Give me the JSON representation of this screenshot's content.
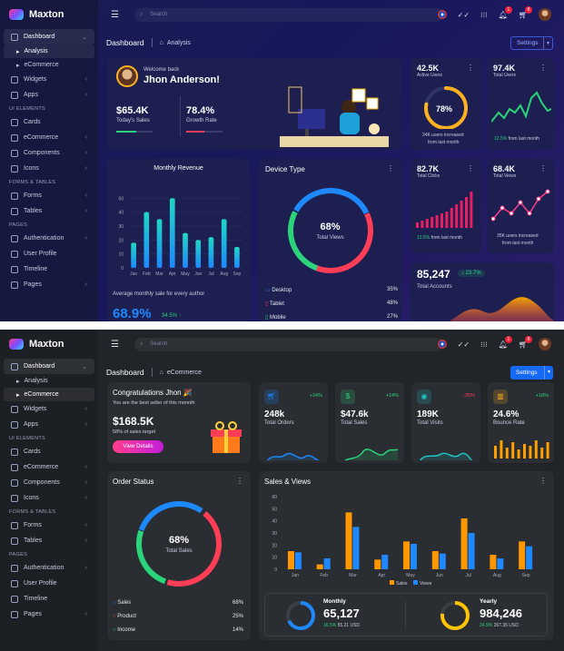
{
  "brand": "Maxton",
  "search_placeholder": "Search",
  "badges": {
    "notifications": "1",
    "cart": "8"
  },
  "sidebar": {
    "dashboard": "Dashboard",
    "analysis": "Analysis",
    "ecommerce_sub": "eCommerce",
    "widgets": "Widgets",
    "apps": "Apps",
    "cap_ui": "UI ELEMENTS",
    "cards": "Cards",
    "ecommerce": "eCommerce",
    "components": "Components",
    "icons": "Icons",
    "cap_forms": "FORMS & TABLES",
    "forms": "Forms",
    "tables": "Tables",
    "cap_pages": "PAGES",
    "authentication": "Authentication",
    "user_profile": "User Profile",
    "timeline": "Timeline",
    "pages": "Pages"
  },
  "analysis": {
    "breadcrumb_title": "Dashboard",
    "breadcrumb_sub": "Analysis",
    "settings": "Settings",
    "welcome": {
      "greeting": "Welcome back",
      "name": "Jhon Anderson!",
      "sales_value": "$65.4K",
      "sales_label": "Today's Sales",
      "growth_value": "78.4%",
      "growth_label": "Growth Rate",
      "sales_progress": 0.55,
      "growth_progress": 0.5
    },
    "active_users": {
      "value": "42.5K",
      "label": "Active Users",
      "percent": "78%",
      "percent_value": 78,
      "note1": "24K users increased",
      "note2": "from last month"
    },
    "total_users": {
      "value": "97.4K",
      "label": "Total Users",
      "change": "12.5%",
      "note": "from last month"
    },
    "monthly_revenue": {
      "title": "Monthly Revenue",
      "caption": "Average monthly sale for every author",
      "value": "68.9%",
      "change": "34.5% ↑"
    },
    "device_type": {
      "title": "Device Type",
      "percent": "68%",
      "label": "Total Views",
      "items": [
        {
          "name": "Desktop",
          "value": "35%",
          "color": "#1e88ff"
        },
        {
          "name": "Tablet",
          "value": "48%",
          "color": "#ff3d57"
        },
        {
          "name": "Mobile",
          "value": "27%",
          "color": "#2bd47a"
        }
      ]
    },
    "total_clicks": {
      "value": "82.7K",
      "label": "Total Clicks",
      "change": "12.5%",
      "note": "from last month"
    },
    "total_views": {
      "value": "68.4K",
      "label": "Total Views",
      "note1": "35K users increased",
      "note2": "from last month"
    },
    "total_accounts": {
      "value": "85,247",
      "label": "Total Accounts",
      "change": "↓ 23.7%"
    }
  },
  "ecommerce": {
    "breadcrumb_title": "Dashboard",
    "breadcrumb_sub": "eCommerce",
    "settings": "Settings",
    "congrats": {
      "title": "Congratulations Jhon 🎉",
      "subtitle": "You are the best seller of this monnth",
      "value": "$168.5K",
      "target": "58% of sales target",
      "button": "View Details"
    },
    "kpis": [
      {
        "icon": "cart-icon",
        "change": "+24%",
        "value": "248k",
        "label": "Total Orders",
        "color": "#1e88ff",
        "up": true
      },
      {
        "icon": "dollar-icon",
        "change": "+14%",
        "value": "$47.6k",
        "label": "Total Sales",
        "color": "#2bd47a",
        "up": true
      },
      {
        "icon": "eye-icon",
        "change": "-35%",
        "value": "189K",
        "label": "Total Visits",
        "color": "#1fc4c4",
        "up": false
      },
      {
        "icon": "bar-icon",
        "change": "+18%",
        "value": "24.6%",
        "label": "Bounce Rate",
        "color": "#ffb020",
        "up": true
      }
    ],
    "order_status": {
      "title": "Order Status",
      "percent": "68%",
      "label": "Total Sales",
      "items": [
        {
          "name": "Sales",
          "value": "68%",
          "color": "#1e88ff"
        },
        {
          "name": "Product",
          "value": "25%",
          "color": "#ff3d57"
        },
        {
          "name": "Income",
          "value": "14%",
          "color": "#2bd47a"
        }
      ]
    },
    "sales_views": {
      "title": "Sales & Views"
    },
    "monthly": {
      "title": "Monthly",
      "value": "65,127",
      "change": "16.5%",
      "amount": "55.21 USD"
    },
    "yearly": {
      "title": "Yearly",
      "value": "984,246",
      "change": "24.9%",
      "amount": "267.35 USD"
    }
  },
  "chart_data": [
    {
      "type": "bar",
      "title": "Monthly Revenue",
      "categories": [
        "Jan",
        "Feb",
        "Mar",
        "Apr",
        "May",
        "Jun",
        "Jul",
        "Aug",
        "Sep"
      ],
      "values": [
        18,
        40,
        35,
        50,
        25,
        20,
        22,
        35,
        15
      ],
      "ylim": [
        0,
        60
      ],
      "yticks": [
        0,
        10,
        20,
        30,
        40,
        50
      ],
      "grid": true
    },
    {
      "type": "bar",
      "title": "Sales & Views",
      "categories": [
        "Jan",
        "Feb",
        "Mar",
        "Apr",
        "May",
        "Jun",
        "Jul",
        "Aug",
        "Sep"
      ],
      "series": [
        {
          "name": "Sales",
          "values": [
            15,
            4,
            47,
            8,
            23,
            15,
            42,
            12,
            23
          ],
          "color": "#ff9800"
        },
        {
          "name": "Views",
          "values": [
            14,
            9,
            35,
            12,
            21,
            13,
            30,
            9,
            19
          ],
          "color": "#1e88ff"
        }
      ],
      "ylim": [
        0,
        60
      ],
      "yticks": [
        0,
        10,
        20,
        30,
        40,
        50,
        60
      ],
      "legend": "bottom"
    }
  ],
  "colors": {
    "accent": "#1669f5",
    "green": "#2bd47a",
    "red": "#ff3d57",
    "orange": "#ff9800",
    "blue": "#1e88ff"
  }
}
